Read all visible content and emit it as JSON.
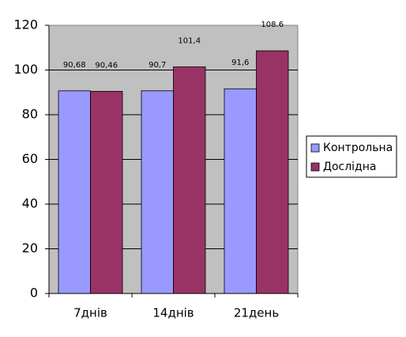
{
  "chart_data": {
    "type": "bar",
    "categories": [
      "7днів",
      "14днів",
      "21день"
    ],
    "series": [
      {
        "name": "Контрольна",
        "color": "#9999ff",
        "values": [
          90.68,
          90.7,
          91.6
        ],
        "value_labels": [
          "90,68",
          "90,7",
          "91,6"
        ]
      },
      {
        "name": "Дослідна",
        "color": "#993366",
        "values": [
          90.46,
          101.4,
          108.6
        ],
        "value_labels": [
          "90,46",
          "101,4",
          "108.6"
        ]
      }
    ],
    "ylim": [
      0,
      120
    ],
    "yticks": [
      0,
      20,
      40,
      60,
      80,
      100,
      120
    ],
    "grid": true,
    "legend": "right"
  }
}
